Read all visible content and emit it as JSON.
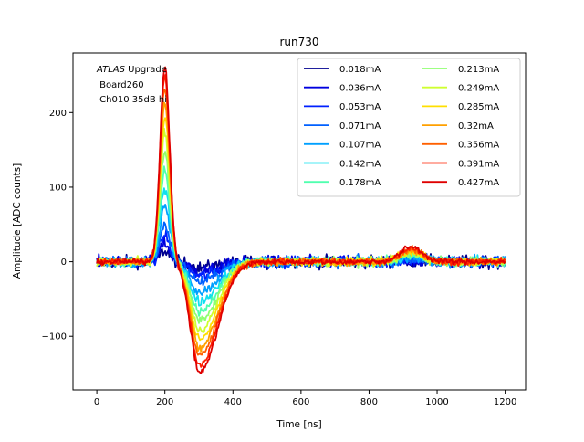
{
  "chart_data": {
    "type": "line",
    "title": "run730",
    "xlabel": "Time [ns]",
    "ylabel": "Amplitude [ADC counts]",
    "xlim": [
      -70,
      1260
    ],
    "ylim": [
      -172,
      280
    ],
    "xticks": [
      0,
      200,
      400,
      600,
      800,
      1000,
      1200
    ],
    "xtick_labels": [
      "0",
      "200",
      "400",
      "600",
      "800",
      "1000",
      "1200"
    ],
    "yticks": [
      -100,
      0,
      100,
      200
    ],
    "ytick_labels": [
      "−100",
      "0",
      "100",
      "200"
    ],
    "annotation": {
      "line1_italic": "ATLAS",
      "line1_rest": " Upgrade",
      "line2": " Board260",
      "line3": " Ch010 35dB hi"
    },
    "legend_position": "top-right",
    "legend_columns": 2,
    "series": [
      {
        "name": "0.018mA",
        "color": "#00008f",
        "peak": 15,
        "undershoot": -8
      },
      {
        "name": "0.036mA",
        "color": "#0000df",
        "peak": 25,
        "undershoot": -13
      },
      {
        "name": "0.053mA",
        "color": "#0020ff",
        "peak": 36,
        "undershoot": -19
      },
      {
        "name": "0.071mA",
        "color": "#0060ff",
        "peak": 50,
        "undershoot": -27
      },
      {
        "name": "0.107mA",
        "color": "#00a0ff",
        "peak": 75,
        "undershoot": -40
      },
      {
        "name": "0.142mA",
        "color": "#10e0ef",
        "peak": 100,
        "undershoot": -53
      },
      {
        "name": "0.178mA",
        "color": "#50ffaf",
        "peak": 125,
        "undershoot": -66
      },
      {
        "name": "0.213mA",
        "color": "#8fff70",
        "peak": 148,
        "undershoot": -78
      },
      {
        "name": "0.249mA",
        "color": "#cfff30",
        "peak": 172,
        "undershoot": -91
      },
      {
        "name": "0.285mA",
        "color": "#ffdf00",
        "peak": 193,
        "undershoot": -103
      },
      {
        "name": "0.32mA",
        "color": "#ffa000",
        "peak": 212,
        "undershoot": -115
      },
      {
        "name": "0.356mA",
        "color": "#ff6000",
        "peak": 232,
        "undershoot": -126
      },
      {
        "name": "0.391mA",
        "color": "#ff2000",
        "peak": 248,
        "undershoot": -138
      },
      {
        "name": "0.427mA",
        "color": "#df0000",
        "peak": 262,
        "undershoot": -148
      }
    ]
  }
}
